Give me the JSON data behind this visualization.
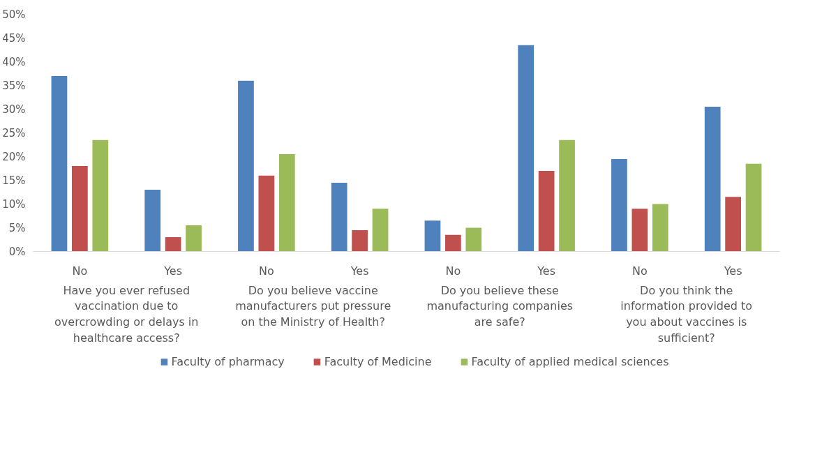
{
  "chart_data": {
    "type": "bar",
    "categories": [
      "No",
      "Yes",
      "No",
      "Yes",
      "No",
      "Yes",
      "No",
      "Yes"
    ],
    "series": [
      {
        "name": "Faculty of pharmacy",
        "color": "#4f81bd",
        "values": [
          37,
          13,
          36,
          14.5,
          6.5,
          43.5,
          19.5,
          30.5
        ]
      },
      {
        "name": "Faculty of Medicine",
        "color": "#c0504d",
        "values": [
          18,
          3,
          16,
          4.5,
          3.5,
          17,
          9,
          11.5
        ]
      },
      {
        "name": "Faculty of applied medical sciences",
        "color": "#9bbb59",
        "values": [
          23.5,
          5.5,
          20.5,
          9,
          5,
          23.5,
          10,
          18.5
        ]
      }
    ],
    "annotations": [
      "Have you ever refused vaccination due to overcrowding or delays in healthcare access?",
      "Do you believe vaccine manufacturers put pressure on the Ministry of Health?",
      "Do you believe these manufacturing companies are safe?",
      "Do you think the information provided to you about vaccines is sufficient?"
    ],
    "ylim": [
      0,
      50
    ],
    "yticks": [
      {
        "value": 0,
        "label": "0%"
      },
      {
        "value": 5,
        "label": "5%"
      },
      {
        "value": 10,
        "label": "10%"
      },
      {
        "value": 15,
        "label": "15%"
      },
      {
        "value": 20,
        "label": "20%"
      },
      {
        "value": 25,
        "label": "25%"
      },
      {
        "value": 30,
        "label": "30%"
      },
      {
        "value": 35,
        "label": "35%"
      },
      {
        "value": 40,
        "label": "40%"
      },
      {
        "value": 45,
        "label": "45%"
      },
      {
        "value": 50,
        "label": "50%"
      }
    ],
    "grid": false,
    "legend": "bottom"
  }
}
